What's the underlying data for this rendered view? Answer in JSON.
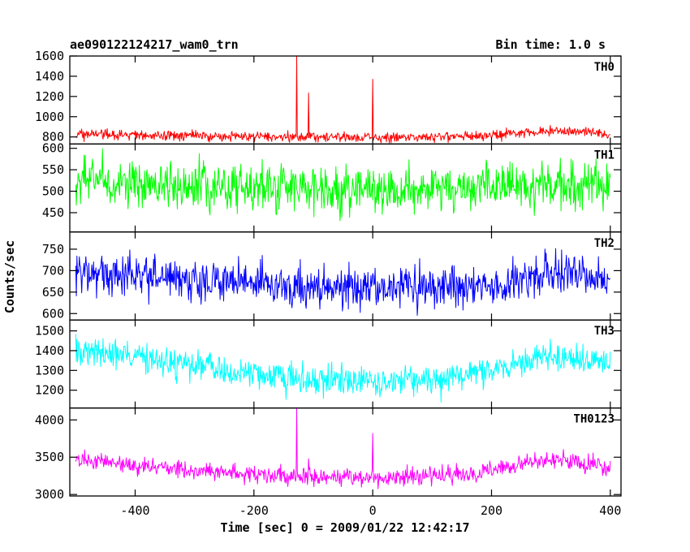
{
  "header": {
    "left": "ae090122124217_wam0_trn",
    "right": "Bin time: 1.0 s"
  },
  "chart_data": {
    "type": "line",
    "xlabel": "Time [sec] 0 = 2009/01/22 12:42:17",
    "ylabel": "Counts/sec",
    "xlim": [
      -510,
      418
    ],
    "xticks": [
      -400,
      -200,
      0,
      200,
      400
    ],
    "bin_time_s": 1.0,
    "x_span": [
      -500,
      400
    ],
    "panels": [
      {
        "name": "TH0",
        "color": "#ff0000",
        "ylim": [
          730,
          1600
        ],
        "yticks": [
          800,
          1000,
          1200,
          1400,
          1600
        ],
        "baseline": [
          [
            -500,
            820
          ],
          [
            -300,
            812
          ],
          [
            -150,
            800
          ],
          [
            0,
            795
          ],
          [
            100,
            800
          ],
          [
            200,
            815
          ],
          [
            300,
            860
          ],
          [
            400,
            830
          ]
        ],
        "noise": 26,
        "spikes": [
          [
            -128,
            1600
          ],
          [
            -108,
            1235
          ],
          [
            0,
            1370
          ]
        ]
      },
      {
        "name": "TH1",
        "color": "#00ff00",
        "ylim": [
          405,
          610
        ],
        "yticks": [
          450,
          500,
          550,
          600
        ],
        "baseline": [
          [
            -500,
            525
          ],
          [
            -300,
            515
          ],
          [
            -100,
            505
          ],
          [
            0,
            500
          ],
          [
            200,
            505
          ],
          [
            300,
            515
          ],
          [
            400,
            510
          ]
        ],
        "noise": 28,
        "spikes": []
      },
      {
        "name": "TH2",
        "color": "#0000ff",
        "ylim": [
          585,
          790
        ],
        "yticks": [
          600,
          650,
          700,
          750
        ],
        "baseline": [
          [
            -500,
            700
          ],
          [
            -300,
            680
          ],
          [
            -100,
            665
          ],
          [
            0,
            660
          ],
          [
            150,
            662
          ],
          [
            250,
            680
          ],
          [
            320,
            700
          ],
          [
            400,
            680
          ]
        ],
        "noise": 24,
        "spikes": []
      },
      {
        "name": "TH3",
        "color": "#00ffff",
        "ylim": [
          1110,
          1555
        ],
        "yticks": [
          1200,
          1300,
          1400,
          1500
        ],
        "baseline": [
          [
            -500,
            1400
          ],
          [
            -400,
            1370
          ],
          [
            -250,
            1300
          ],
          [
            -100,
            1255
          ],
          [
            0,
            1235
          ],
          [
            100,
            1250
          ],
          [
            200,
            1300
          ],
          [
            300,
            1380
          ],
          [
            400,
            1330
          ]
        ],
        "noise": 38,
        "spikes": []
      },
      {
        "name": "TH0123",
        "color": "#ff00ff",
        "ylim": [
          2980,
          4160
        ],
        "yticks": [
          3000,
          3500,
          4000
        ],
        "baseline": [
          [
            -500,
            3480
          ],
          [
            -400,
            3380
          ],
          [
            -250,
            3300
          ],
          [
            -100,
            3240
          ],
          [
            0,
            3225
          ],
          [
            150,
            3260
          ],
          [
            250,
            3400
          ],
          [
            300,
            3480
          ],
          [
            400,
            3350
          ]
        ],
        "noise": 58,
        "spikes": [
          [
            -128,
            4160
          ],
          [
            -108,
            3480
          ],
          [
            0,
            3820
          ]
        ]
      }
    ]
  }
}
